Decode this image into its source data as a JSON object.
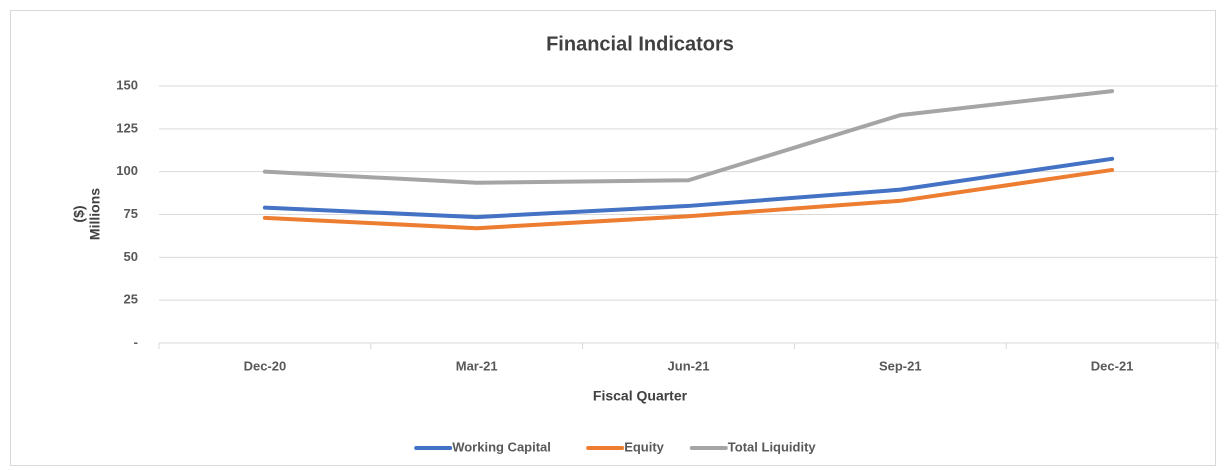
{
  "chart_data": {
    "type": "line",
    "title": "Financial Indicators",
    "x_label": "Fiscal Quarter",
    "y_label": [
      "($)",
      "Millions"
    ],
    "categories": [
      "Dec-20",
      "Mar-21",
      "Jun-21",
      "Sep-21",
      "Dec-21"
    ],
    "series": [
      {
        "name": "Working Capital",
        "color": "#4472c4",
        "values": [
          79,
          73.5,
          80,
          89.5,
          107.5
        ]
      },
      {
        "name": "Equity",
        "color": "#ed7d31",
        "values": [
          73,
          67,
          74,
          83,
          101
        ]
      },
      {
        "name": "Total Liquidity",
        "color": "#a5a5a5",
        "values": [
          100,
          93.5,
          95,
          133,
          147
        ]
      }
    ],
    "ylim": [
      0,
      150
    ],
    "yticks": [
      {
        "value": 0,
        "label": "-"
      },
      25,
      50,
      75,
      100,
      125,
      150
    ],
    "grid": true,
    "legend": "bottom"
  }
}
